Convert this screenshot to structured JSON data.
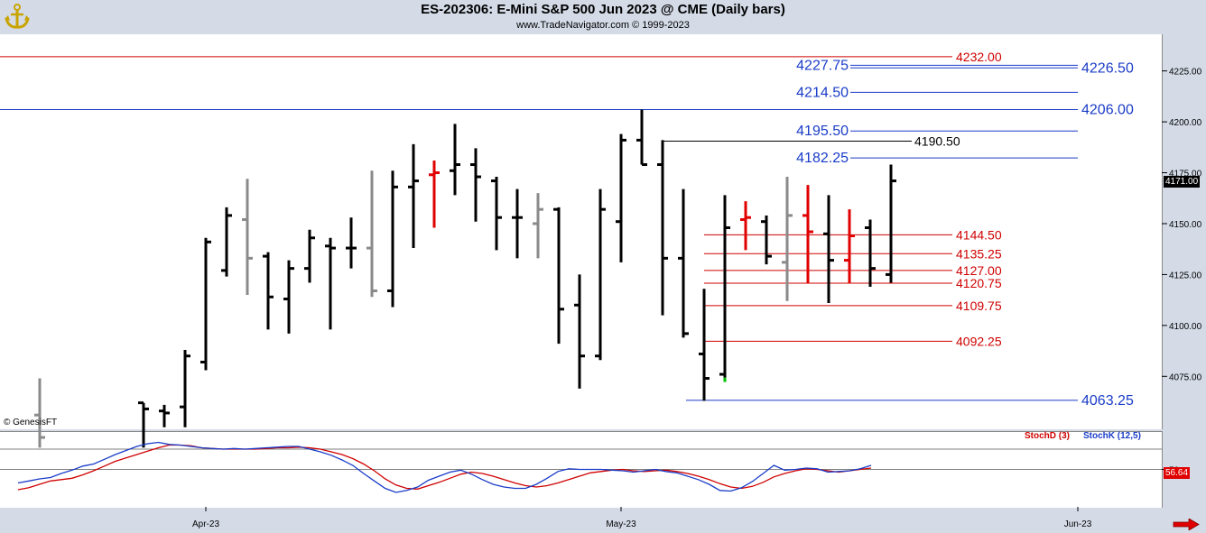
{
  "header": {
    "title": "ES-202306:  E-Mini S&P 500 Jun 2023 @ CME  (Daily bars)",
    "subtitle": "www.TradeNavigator.com © 1999-2023"
  },
  "copyright": "© GenesisFT",
  "price_tag": "4171.00",
  "stoch_tag": "56.64",
  "stoch_legend": {
    "d": "StochD (3)",
    "k": "StochK (12,5)"
  },
  "colors": {
    "background": "#d4dbe7",
    "panel": "#ffffff",
    "bar": "#000000",
    "bar_gray": "#8a8a8a",
    "bar_red": "#e00000",
    "bar_green": "#00c000",
    "level_red": "#d00000",
    "level_blue": "#1a3cc8",
    "level_black": "#000000"
  },
  "chart_data": {
    "type": "ohlc",
    "y_axis": {
      "ylim": [
        4049,
        4243
      ],
      "tick_labels": [
        "4225.00",
        "4200.00",
        "4175.00",
        "4150.00",
        "4125.00",
        "4100.00",
        "4075.00"
      ],
      "tick_values": [
        4225,
        4200,
        4175,
        4150,
        4125,
        4100,
        4075
      ],
      "side": "right"
    },
    "x_axis": {
      "tick_labels": [
        "Apr-23",
        "May-23",
        "Jun-23"
      ],
      "tick_bar_index": [
        8,
        28,
        50
      ]
    },
    "bars": [
      {
        "i": 0,
        "o": 4056,
        "h": 4074,
        "l": 4040,
        "c": 4045,
        "color": "gray"
      },
      {
        "i": 5,
        "o": 4062,
        "h": 4062,
        "l": 4040,
        "c": 4059,
        "color": "black"
      },
      {
        "i": 6,
        "o": 4058,
        "h": 4061,
        "l": 4050,
        "c": 4057,
        "color": "black"
      },
      {
        "i": 7,
        "o": 4060,
        "h": 4088,
        "l": 4050,
        "c": 4085,
        "color": "black"
      },
      {
        "i": 8,
        "o": 4082,
        "h": 4143,
        "l": 4078,
        "c": 4141,
        "color": "black"
      },
      {
        "i": 9,
        "o": 4127,
        "h": 4158,
        "l": 4124,
        "c": 4154,
        "color": "black"
      },
      {
        "i": 10,
        "o": 4152,
        "h": 4172,
        "l": 4115,
        "c": 4133,
        "color": "gray"
      },
      {
        "i": 11,
        "o": 4134,
        "h": 4136,
        "l": 4098,
        "c": 4114,
        "color": "black"
      },
      {
        "i": 12,
        "o": 4113,
        "h": 4132,
        "l": 4096,
        "c": 4128,
        "color": "black"
      },
      {
        "i": 13,
        "o": 4128,
        "h": 4147,
        "l": 4121,
        "c": 4143,
        "color": "black"
      },
      {
        "i": 14,
        "o": 4139,
        "h": 4143,
        "l": 4098,
        "c": 4138,
        "color": "black"
      },
      {
        "i": 15,
        "o": 4138,
        "h": 4153,
        "l": 4128,
        "c": 4138,
        "color": "black"
      },
      {
        "i": 16,
        "o": 4138,
        "h": 4176,
        "l": 4114,
        "c": 4117,
        "color": "gray"
      },
      {
        "i": 17,
        "o": 4117,
        "h": 4176,
        "l": 4109,
        "c": 4168,
        "color": "black"
      },
      {
        "i": 18,
        "o": 4168,
        "h": 4189,
        "l": 4138,
        "c": 4171,
        "color": "black"
      },
      {
        "i": 19,
        "o": 4174,
        "h": 4181,
        "l": 4148,
        "c": 4175,
        "color": "red"
      },
      {
        "i": 20,
        "o": 4176,
        "h": 4199,
        "l": 4164,
        "c": 4179,
        "color": "black"
      },
      {
        "i": 21,
        "o": 4179,
        "h": 4187,
        "l": 4151,
        "c": 4173,
        "color": "black"
      },
      {
        "i": 22,
        "o": 4171,
        "h": 4173,
        "l": 4137,
        "c": 4153,
        "color": "black"
      },
      {
        "i": 23,
        "o": 4153,
        "h": 4167,
        "l": 4133,
        "c": 4153,
        "color": "black"
      },
      {
        "i": 24,
        "o": 4150,
        "h": 4165,
        "l": 4133,
        "c": 4157,
        "color": "gray"
      },
      {
        "i": 25,
        "o": 4157,
        "h": 4158,
        "l": 4091,
        "c": 4108,
        "color": "black"
      },
      {
        "i": 26,
        "o": 4110,
        "h": 4125,
        "l": 4069,
        "c": 4085,
        "color": "black"
      },
      {
        "i": 27,
        "o": 4085,
        "h": 4167,
        "l": 4083,
        "c": 4157,
        "color": "black"
      },
      {
        "i": 28,
        "o": 4151,
        "h": 4194,
        "l": 4131,
        "c": 4191,
        "color": "black"
      },
      {
        "i": 29,
        "o": 4191,
        "h": 4206,
        "l": 4179,
        "c": 4179,
        "color": "black"
      },
      {
        "i": 30,
        "o": 4179,
        "h": 4191,
        "l": 4105,
        "c": 4133,
        "color": "black"
      },
      {
        "i": 31,
        "o": 4133,
        "h": 4167,
        "l": 4094,
        "c": 4096,
        "color": "black"
      },
      {
        "i": 32,
        "o": 4086,
        "h": 4118,
        "l": 4063,
        "c": 4074,
        "color": "black"
      },
      {
        "i": 33,
        "o": 4076,
        "h": 4164,
        "l": 4074,
        "c": 4148,
        "color": "black",
        "low_tick": "green"
      },
      {
        "i": 34,
        "o": 4152,
        "h": 4161,
        "l": 4137,
        "c": 4153,
        "color": "red"
      },
      {
        "i": 35,
        "o": 4151,
        "h": 4154,
        "l": 4130,
        "c": 4134,
        "color": "black"
      },
      {
        "i": 36,
        "o": 4131,
        "h": 4173,
        "l": 4112,
        "c": 4154,
        "color": "gray"
      },
      {
        "i": 37,
        "o": 4154,
        "h": 4169,
        "l": 4121,
        "c": 4146,
        "color": "red"
      },
      {
        "i": 38,
        "o": 4145,
        "h": 4164,
        "l": 4111,
        "c": 4132,
        "color": "black"
      },
      {
        "i": 39,
        "o": 4132,
        "h": 4157,
        "l": 4121,
        "c": 4144,
        "color": "red"
      },
      {
        "i": 40,
        "o": 4148,
        "h": 4152,
        "l": 4119,
        "c": 4128,
        "color": "black"
      },
      {
        "i": 41,
        "o": 4125,
        "h": 4179,
        "l": 4121,
        "c": 4171,
        "color": "black"
      }
    ],
    "levels": [
      {
        "value": 4232.0,
        "label": "4232.00",
        "color": "red",
        "start_bar": 0,
        "end_bar": 24
      },
      {
        "value": 4227.75,
        "label": "4227.75",
        "color": "blue",
        "start_bar": 37,
        "end_bar": 52
      },
      {
        "value": 4226.5,
        "label": "4226.50",
        "color": "blue",
        "start_bar": 37,
        "end_bar": 52
      },
      {
        "value": 4214.5,
        "label": "4214.50",
        "color": "blue",
        "start_bar": 37,
        "end_bar": 52
      },
      {
        "value": 4206.0,
        "label": "4206.00",
        "color": "blue",
        "start_bar": 0,
        "end_bar": 52
      },
      {
        "value": 4195.5,
        "label": "4195.50",
        "color": "blue",
        "start_bar": 37,
        "end_bar": 52
      },
      {
        "value": 4190.5,
        "label": "4190.50",
        "color": "black",
        "start_bar": 30,
        "end_bar": 42
      },
      {
        "value": 4182.25,
        "label": "4182.25",
        "color": "blue",
        "start_bar": 37,
        "end_bar": 52
      },
      {
        "value": 4144.5,
        "label": "4144.50",
        "color": "red",
        "start_bar": 32,
        "end_bar": 44
      },
      {
        "value": 4135.25,
        "label": "4135.25",
        "color": "red",
        "start_bar": 32,
        "end_bar": 44
      },
      {
        "value": 4127.0,
        "label": "4127.00",
        "color": "red",
        "start_bar": 32,
        "end_bar": 44
      },
      {
        "value": 4120.75,
        "label": "4120.75",
        "color": "red",
        "start_bar": 32,
        "end_bar": 44
      },
      {
        "value": 4109.75,
        "label": "4109.75",
        "color": "red",
        "start_bar": 32,
        "end_bar": 44
      },
      {
        "value": 4092.25,
        "label": "4092.25",
        "color": "red",
        "start_bar": 32,
        "end_bar": 44
      },
      {
        "value": 4063.25,
        "label": "4063.25",
        "color": "blue",
        "start_bar": 31,
        "end_bar": 52
      }
    ],
    "stochastic": {
      "ylim": [
        0,
        100
      ],
      "tick_label": "50",
      "reference_lines": [
        80,
        50
      ],
      "stochK": [
        30,
        33,
        36,
        38,
        44,
        49,
        55,
        58,
        65,
        72,
        78,
        84,
        88,
        90,
        87,
        86,
        84,
        82,
        81,
        80,
        81,
        80,
        81,
        82,
        83,
        84,
        84,
        80,
        76,
        71,
        64,
        56,
        44,
        33,
        22,
        16,
        19,
        24,
        34,
        40,
        46,
        49,
        43,
        35,
        28,
        24,
        22,
        22,
        28,
        37,
        47,
        51,
        50,
        50,
        50,
        49,
        48,
        46,
        48,
        50,
        47,
        45,
        40,
        35,
        28,
        19,
        18,
        23,
        32,
        44,
        56,
        49,
        50,
        52,
        51,
        46,
        47,
        48,
        51,
        56
      ],
      "stochD": [
        20,
        23,
        28,
        33,
        35,
        37,
        42,
        48,
        55,
        62,
        67,
        72,
        77,
        82,
        86,
        86,
        85,
        82,
        81,
        80,
        80,
        80,
        80,
        81,
        82,
        82,
        83,
        82,
        80,
        76,
        72,
        66,
        58,
        48,
        36,
        27,
        22,
        21,
        26,
        31,
        37,
        43,
        46,
        44,
        40,
        35,
        30,
        26,
        24,
        26,
        30,
        35,
        40,
        45,
        47,
        49,
        50,
        48,
        47,
        48,
        49,
        47,
        44,
        40,
        35,
        29,
        24,
        22,
        25,
        31,
        39,
        44,
        48,
        51,
        50,
        48,
        46,
        48,
        50,
        52
      ]
    }
  }
}
